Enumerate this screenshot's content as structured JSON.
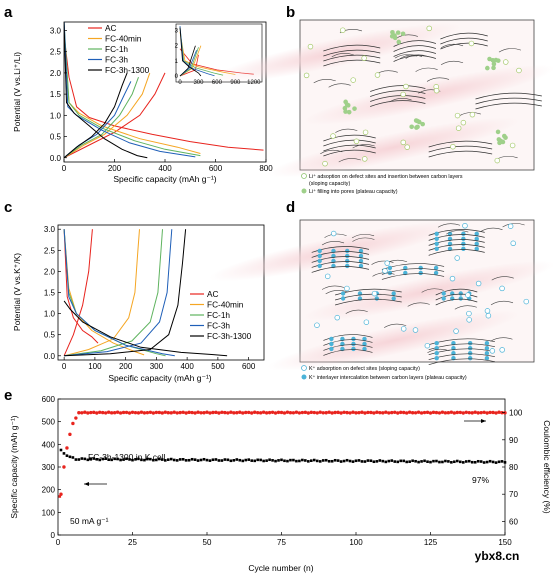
{
  "watermark": "ybx8.cn",
  "panels": {
    "a": {
      "letter": "a"
    },
    "b": {
      "letter": "b",
      "caption1": "Li⁺ adsoption on defect sites and insertion between carbon layers",
      "caption1b": "(sloping capacity)",
      "caption2": "Li⁺ filling into pores (plateau capacity)"
    },
    "c": {
      "letter": "c"
    },
    "d": {
      "letter": "d",
      "caption1": "K⁺ adsorption on defect sites (sloping capacity)",
      "caption2": "K⁺ interlayer intercalation between carbon layers (plateau capacity)"
    },
    "e": {
      "letter": "e"
    }
  },
  "colors": {
    "AC": "#e8241e",
    "FC-40min": "#f5a623",
    "FC-1h": "#5fb35f",
    "FC-3h": "#1f5fb8",
    "FC-3h-1300": "#000000",
    "li_dot": "#9fd08a",
    "k_dot": "#4bb3d8",
    "band": "#f6d3d7"
  },
  "chart_data": [
    {
      "id": "a",
      "type": "line",
      "xlabel": "Specific capacity (mAh g⁻¹)",
      "ylabel": "Potential (V vs.Li⁺/Li)",
      "xlim": [
        0,
        800
      ],
      "ylim": [
        -0.1,
        3.2
      ],
      "xticks": [
        0,
        200,
        400,
        600,
        800
      ],
      "yticks": [
        0.0,
        0.5,
        1.0,
        1.5,
        2.0,
        2.5,
        3.0
      ],
      "xtick_labels": [
        "0",
        "200",
        "400",
        "600",
        "800"
      ],
      "ytick_labels": [
        "0.0",
        "0.5",
        "1.0",
        "1.5",
        "2.0",
        "2.5",
        "3.0"
      ],
      "legend": [
        "AC",
        "FC-40min",
        "FC-1h",
        "FC-3h",
        "FC-3h-1300"
      ],
      "legend_position": "top-left",
      "series": [
        {
          "name": "AC",
          "discharge": [
            [
              0,
              2.9
            ],
            [
              20,
              1.9
            ],
            [
              50,
              1.2
            ],
            [
              100,
              0.95
            ],
            [
              200,
              0.75
            ],
            [
              350,
              0.55
            ],
            [
              500,
              0.38
            ],
            [
              650,
              0.25
            ],
            [
              790,
              0.18
            ]
          ],
          "charge": [
            [
              0,
              0.0
            ],
            [
              100,
              0.3
            ],
            [
              200,
              0.6
            ],
            [
              300,
              1.0
            ],
            [
              360,
              1.5
            ],
            [
              400,
              2.0
            ]
          ]
        },
        {
          "name": "FC-40min",
          "discharge": [
            [
              0,
              3.0
            ],
            [
              20,
              1.3
            ],
            [
              60,
              1.05
            ],
            [
              150,
              0.75
            ],
            [
              300,
              0.45
            ],
            [
              450,
              0.25
            ],
            [
              540,
              0.1
            ]
          ],
          "charge": [
            [
              0,
              0.0
            ],
            [
              80,
              0.3
            ],
            [
              160,
              0.55
            ],
            [
              250,
              1.0
            ],
            [
              310,
              1.5
            ],
            [
              340,
              2.0
            ]
          ]
        },
        {
          "name": "FC-1h",
          "discharge": [
            [
              0,
              3.2
            ],
            [
              20,
              1.3
            ],
            [
              60,
              1.0
            ],
            [
              150,
              0.7
            ],
            [
              280,
              0.4
            ],
            [
              400,
              0.2
            ],
            [
              540,
              0.05
            ]
          ],
          "charge": [
            [
              0,
              0.0
            ],
            [
              70,
              0.3
            ],
            [
              150,
              0.55
            ],
            [
              220,
              1.0
            ],
            [
              270,
              1.5
            ],
            [
              295,
              1.9
            ]
          ]
        },
        {
          "name": "FC-3h",
          "discharge": [
            [
              0,
              3.3
            ],
            [
              15,
              1.2
            ],
            [
              50,
              1.0
            ],
            [
              150,
              0.65
            ],
            [
              260,
              0.35
            ],
            [
              380,
              0.15
            ],
            [
              520,
              0.02
            ]
          ],
          "charge": [
            [
              0,
              0.0
            ],
            [
              60,
              0.3
            ],
            [
              130,
              0.55
            ],
            [
              200,
              1.0
            ],
            [
              240,
              1.5
            ],
            [
              265,
              1.8
            ]
          ]
        },
        {
          "name": "FC-3h-1300",
          "discharge": [
            [
              0,
              3.2
            ],
            [
              10,
              1.3
            ],
            [
              40,
              1.05
            ],
            [
              100,
              0.75
            ],
            [
              160,
              0.45
            ],
            [
              230,
              0.2
            ],
            [
              290,
              0.05
            ],
            [
              330,
              0.0
            ]
          ],
          "charge": [
            [
              0,
              0.0
            ],
            [
              50,
              0.25
            ],
            [
              110,
              0.5
            ],
            [
              160,
              0.8
            ],
            [
              200,
              1.2
            ],
            [
              230,
              1.7
            ],
            [
              250,
              2.0
            ]
          ]
        }
      ],
      "inset": {
        "xlim": [
          0,
          1300
        ],
        "ylim": [
          0,
          3.3
        ],
        "xticks": [
          0,
          300,
          600,
          900,
          1200
        ],
        "yticks": [
          0,
          1,
          2,
          3
        ],
        "xtick_labels": [
          "0",
          "300",
          "600",
          "900",
          "1200"
        ],
        "ytick_labels": [
          "0",
          "1",
          "2",
          "3"
        ]
      }
    },
    {
      "id": "c",
      "type": "line",
      "xlabel": "Specific capacity (mAh g⁻¹)",
      "ylabel": "Potential (V vs.K⁺/K)",
      "xlim": [
        -20,
        650
      ],
      "ylim": [
        -0.1,
        3.1
      ],
      "xticks": [
        0,
        100,
        200,
        300,
        400,
        500,
        600
      ],
      "yticks": [
        0.0,
        0.5,
        1.0,
        1.5,
        2.0,
        2.5,
        3.0
      ],
      "xtick_labels": [
        "0",
        "100",
        "200",
        "300",
        "400",
        "500",
        "600"
      ],
      "ytick_labels": [
        "0.0",
        "0.5",
        "1.0",
        "1.5",
        "2.0",
        "2.5",
        "3.0"
      ],
      "legend": [
        "AC",
        "FC-40min",
        "FC-1h",
        "FC-3h",
        "FC-3h-1300"
      ],
      "legend_position": "bottom-right",
      "series": [
        {
          "name": "AC",
          "discharge": [
            [
              0,
              3.0
            ],
            [
              10,
              1.4
            ],
            [
              30,
              0.9
            ],
            [
              60,
              0.6
            ],
            [
              90,
              0.45
            ],
            [
              110,
              0.3
            ]
          ],
          "charge": [
            [
              0,
              0.0
            ],
            [
              30,
              0.5
            ],
            [
              60,
              1.2
            ],
            [
              80,
              2.0
            ],
            [
              92,
              3.0
            ]
          ]
        },
        {
          "name": "FC-40min",
          "discharge": [
            [
              0,
              3.0
            ],
            [
              15,
              1.6
            ],
            [
              40,
              1.0
            ],
            [
              90,
              0.6
            ],
            [
              160,
              0.3
            ],
            [
              230,
              0.1
            ],
            [
              260,
              0.02
            ]
          ],
          "charge": [
            [
              0,
              0.0
            ],
            [
              80,
              0.15
            ],
            [
              160,
              0.4
            ],
            [
              210,
              0.9
            ],
            [
              230,
              1.5
            ],
            [
              240,
              2.5
            ],
            [
              245,
              3.0
            ]
          ]
        },
        {
          "name": "FC-1h",
          "discharge": [
            [
              0,
              3.0
            ],
            [
              15,
              1.5
            ],
            [
              40,
              1.0
            ],
            [
              100,
              0.6
            ],
            [
              200,
              0.25
            ],
            [
              300,
              0.05
            ],
            [
              330,
              0.0
            ]
          ],
          "charge": [
            [
              0,
              0.0
            ],
            [
              120,
              0.12
            ],
            [
              220,
              0.35
            ],
            [
              280,
              0.8
            ],
            [
              305,
              1.5
            ],
            [
              315,
              2.5
            ],
            [
              320,
              3.0
            ]
          ]
        },
        {
          "name": "FC-3h",
          "discharge": [
            [
              0,
              3.0
            ],
            [
              15,
              1.4
            ],
            [
              40,
              1.0
            ],
            [
              100,
              0.6
            ],
            [
              200,
              0.25
            ],
            [
              320,
              0.05
            ],
            [
              360,
              0.0
            ]
          ],
          "charge": [
            [
              0,
              0.0
            ],
            [
              140,
              0.1
            ],
            [
              250,
              0.3
            ],
            [
              310,
              0.8
            ],
            [
              335,
              1.5
            ],
            [
              345,
              2.5
            ],
            [
              350,
              3.0
            ]
          ]
        },
        {
          "name": "FC-3h-1300",
          "discharge": [
            [
              0,
              1.3
            ],
            [
              20,
              1.1
            ],
            [
              60,
              0.8
            ],
            [
              150,
              0.45
            ],
            [
              250,
              0.2
            ],
            [
              380,
              0.08
            ],
            [
              480,
              0.03
            ],
            [
              530,
              0.0
            ]
          ],
          "charge": [
            [
              0,
              0.0
            ],
            [
              150,
              0.05
            ],
            [
              280,
              0.15
            ],
            [
              340,
              0.5
            ],
            [
              370,
              1.2
            ],
            [
              385,
              2.2
            ],
            [
              395,
              3.0
            ]
          ]
        }
      ]
    },
    {
      "id": "e",
      "type": "scatter",
      "xlabel": "Cycle number (n)",
      "ylabel": "Specific capacity (mAh g⁻¹)",
      "y2label": "Coulombic efficiency (%)",
      "xlim": [
        0,
        150
      ],
      "ylim": [
        0,
        600
      ],
      "y2lim": [
        55,
        105
      ],
      "xticks": [
        0,
        25,
        50,
        75,
        100,
        125,
        150
      ],
      "yticks": [
        0,
        100,
        200,
        300,
        400,
        500,
        600
      ],
      "y2ticks": [
        60,
        70,
        80,
        90,
        100
      ],
      "xtick_labels": [
        "0",
        "25",
        "50",
        "75",
        "100",
        "125",
        "150"
      ],
      "ytick_labels": [
        "0",
        "100",
        "200",
        "300",
        "400",
        "500",
        "600"
      ],
      "y2tick_labels": [
        "60",
        "70",
        "80",
        "90",
        "100"
      ],
      "annotations": {
        "cell": "FC-3h-1300 in K cell",
        "rate": "50 mA g⁻¹",
        "ce": "97%"
      },
      "capacity_start": [
        [
          1,
          375
        ],
        [
          2,
          360
        ],
        [
          3,
          350
        ],
        [
          4,
          345
        ],
        [
          5,
          342
        ]
      ],
      "capacity_plateau": 335,
      "capacity_end": 322,
      "ce_start": [
        [
          1,
          70
        ],
        [
          2,
          80
        ],
        [
          3,
          87
        ],
        [
          4,
          92
        ],
        [
          5,
          96
        ],
        [
          6,
          98
        ]
      ],
      "ce_plateau": 100
    }
  ]
}
